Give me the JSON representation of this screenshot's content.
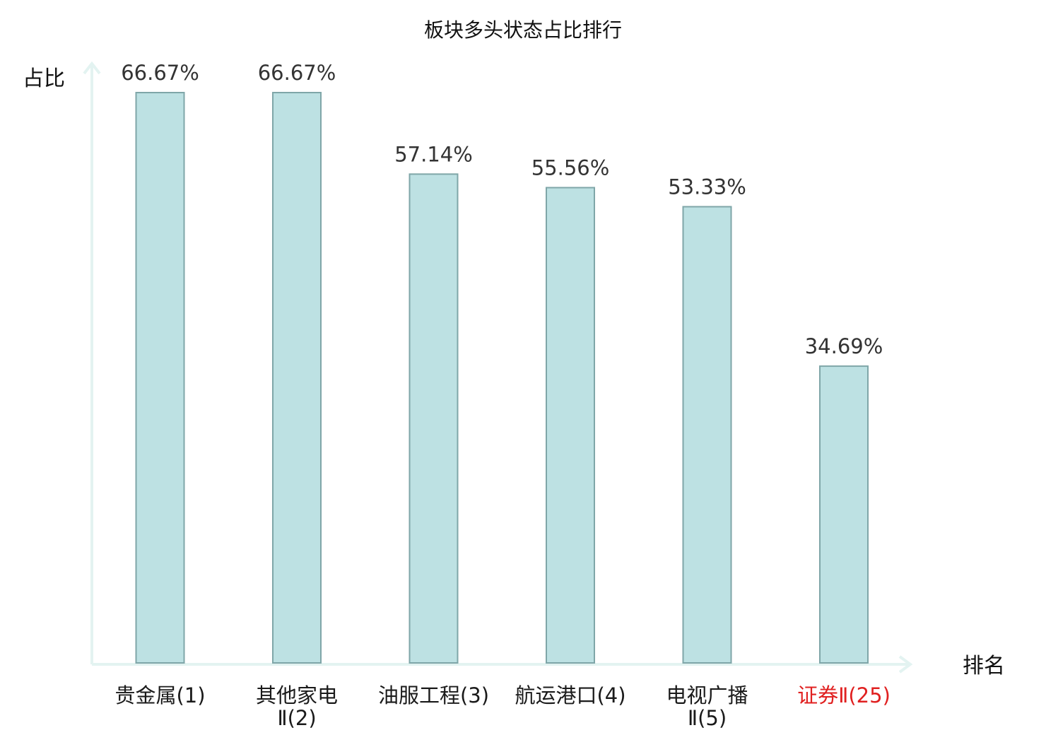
{
  "chart_data": {
    "type": "bar",
    "title": "板块多头状态占比排行",
    "xlabel": "排名",
    "ylabel": "占比",
    "categories": [
      {
        "name": "贵金属",
        "rank": "(1)"
      },
      {
        "name": "其他家电",
        "rank": "Ⅱ(2)"
      },
      {
        "name": "油服工程",
        "rank": "(3)"
      },
      {
        "name": "航运港口",
        "rank": "(4)"
      },
      {
        "name": "电视广播",
        "rank": "Ⅱ(5)"
      },
      {
        "name": "证券",
        "rank": "Ⅱ(25)"
      }
    ],
    "values": [
      66.67,
      66.67,
      57.14,
      55.56,
      53.33,
      34.69
    ],
    "value_labels": [
      "66.67%",
      "66.67%",
      "57.14%",
      "55.56%",
      "53.33%",
      "34.69%"
    ],
    "highlight_index": 5,
    "ylim": [
      0,
      66.67
    ],
    "grid": false,
    "legend": "none",
    "colors": {
      "bar_fill": "#bde1e3",
      "bar_stroke": "#7fa6a8",
      "axis": "#e3f3f1",
      "highlight_text": "#e02020",
      "label_text": "#333333"
    }
  }
}
